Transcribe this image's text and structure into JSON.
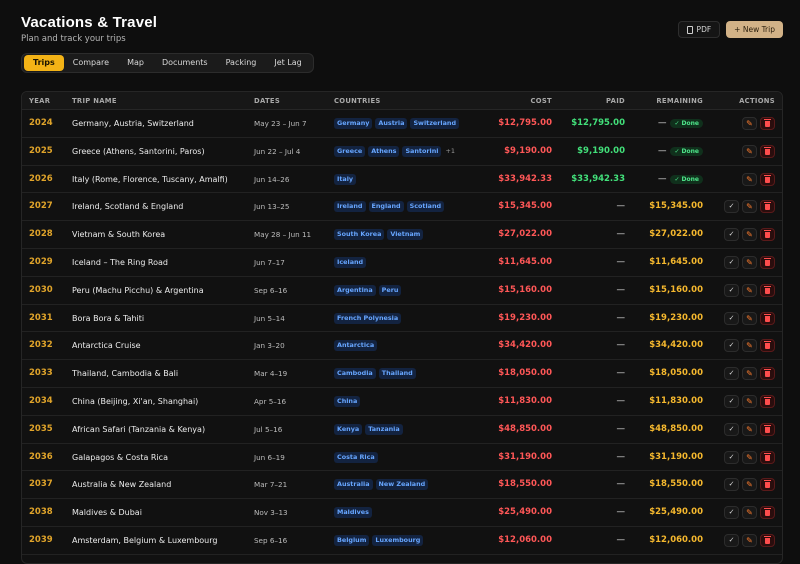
{
  "header": {
    "title": "Vacations & Travel",
    "subtitle": "Plan and track your trips",
    "pdf_label": "PDF",
    "new_trip_label": "+ New Trip"
  },
  "tabs": [
    "Trips",
    "Compare",
    "Map",
    "Documents",
    "Packing",
    "Jet Lag"
  ],
  "active_tab": "Trips",
  "columns": {
    "year": "YEAR",
    "trip": "TRIP NAME",
    "dates": "DATES",
    "countries": "COUNTRIES",
    "cost": "COST",
    "paid": "PAID",
    "remaining": "REMAINING",
    "actions": "ACTIONS"
  },
  "done_label": "✓ Done",
  "dash": "—",
  "trips": [
    {
      "year": "2024",
      "name": "Germany, Austria, Switzerland",
      "dates": "May 23 – Jun 7",
      "countries": [
        "Germany",
        "Austria",
        "Switzerland"
      ],
      "more": "",
      "cost": "$12,795.00",
      "paid": "$12,795.00",
      "remaining": "",
      "done": true
    },
    {
      "year": "2025",
      "name": "Greece (Athens, Santorini, Paros)",
      "dates": "Jun 22 – Jul 4",
      "countries": [
        "Greece",
        "Athens",
        "Santorini"
      ],
      "more": "+1",
      "cost": "$9,190.00",
      "paid": "$9,190.00",
      "remaining": "",
      "done": true
    },
    {
      "year": "2026",
      "name": "Italy (Rome, Florence, Tuscany, Amalfi)",
      "dates": "Jun 14–26",
      "countries": [
        "Italy"
      ],
      "more": "",
      "cost": "$33,942.33",
      "paid": "$33,942.33",
      "remaining": "",
      "done": true
    },
    {
      "year": "2027",
      "name": "Ireland, Scotland & England",
      "dates": "Jun 13–25",
      "countries": [
        "Ireland",
        "England",
        "Scotland"
      ],
      "more": "",
      "cost": "$15,345.00",
      "paid": "",
      "remaining": "$15,345.00",
      "done": false
    },
    {
      "year": "2028",
      "name": "Vietnam & South Korea",
      "dates": "May 28 – Jun 11",
      "countries": [
        "South Korea",
        "Vietnam"
      ],
      "more": "",
      "cost": "$27,022.00",
      "paid": "",
      "remaining": "$27,022.00",
      "done": false
    },
    {
      "year": "2029",
      "name": "Iceland – The Ring Road",
      "dates": "Jun 7–17",
      "countries": [
        "Iceland"
      ],
      "more": "",
      "cost": "$11,645.00",
      "paid": "",
      "remaining": "$11,645.00",
      "done": false
    },
    {
      "year": "2030",
      "name": "Peru (Machu Picchu) & Argentina",
      "dates": "Sep 6–16",
      "countries": [
        "Argentina",
        "Peru"
      ],
      "more": "",
      "cost": "$15,160.00",
      "paid": "",
      "remaining": "$15,160.00",
      "done": false
    },
    {
      "year": "2031",
      "name": "Bora Bora & Tahiti",
      "dates": "Jun 5–14",
      "countries": [
        "French Polynesia"
      ],
      "more": "",
      "cost": "$19,230.00",
      "paid": "",
      "remaining": "$19,230.00",
      "done": false
    },
    {
      "year": "2032",
      "name": "Antarctica Cruise",
      "dates": "Jan 3–20",
      "countries": [
        "Antarctica"
      ],
      "more": "",
      "cost": "$34,420.00",
      "paid": "",
      "remaining": "$34,420.00",
      "done": false
    },
    {
      "year": "2033",
      "name": "Thailand, Cambodia & Bali",
      "dates": "Mar 4–19",
      "countries": [
        "Cambodia",
        "Thailand"
      ],
      "more": "",
      "cost": "$18,050.00",
      "paid": "",
      "remaining": "$18,050.00",
      "done": false
    },
    {
      "year": "2034",
      "name": "China (Beijing, Xi'an, Shanghai)",
      "dates": "Apr 5–16",
      "countries": [
        "China"
      ],
      "more": "",
      "cost": "$11,830.00",
      "paid": "",
      "remaining": "$11,830.00",
      "done": false
    },
    {
      "year": "2035",
      "name": "African Safari (Tanzania & Kenya)",
      "dates": "Jul 5–16",
      "countries": [
        "Kenya",
        "Tanzania"
      ],
      "more": "",
      "cost": "$48,850.00",
      "paid": "",
      "remaining": "$48,850.00",
      "done": false
    },
    {
      "year": "2036",
      "name": "Galapagos & Costa Rica",
      "dates": "Jun 6–19",
      "countries": [
        "Costa Rica"
      ],
      "more": "",
      "cost": "$31,190.00",
      "paid": "",
      "remaining": "$31,190.00",
      "done": false
    },
    {
      "year": "2037",
      "name": "Australia & New Zealand",
      "dates": "Mar 7–21",
      "countries": [
        "Australia",
        "New Zealand"
      ],
      "more": "",
      "cost": "$18,550.00",
      "paid": "",
      "remaining": "$18,550.00",
      "done": false
    },
    {
      "year": "2038",
      "name": "Maldives & Dubai",
      "dates": "Nov 3–13",
      "countries": [
        "Maldives"
      ],
      "more": "",
      "cost": "$25,490.00",
      "paid": "",
      "remaining": "$25,490.00",
      "done": false
    },
    {
      "year": "2039",
      "name": "Amsterdam, Belgium & Luxembourg",
      "dates": "Sep 6–16",
      "countries": [
        "Belgium",
        "Luxembourg"
      ],
      "more": "",
      "cost": "$12,060.00",
      "paid": "",
      "remaining": "$12,060.00",
      "done": false
    }
  ],
  "colors": {
    "accent": "#f3b316",
    "cost": "#ff5757",
    "paid": "#42e07a",
    "remaining": "#f5b82e",
    "chip_text": "#67a6ff"
  },
  "icons": {
    "pdf": "document-icon",
    "check": "check-icon",
    "edit": "pencil-icon",
    "delete": "trash-icon"
  }
}
